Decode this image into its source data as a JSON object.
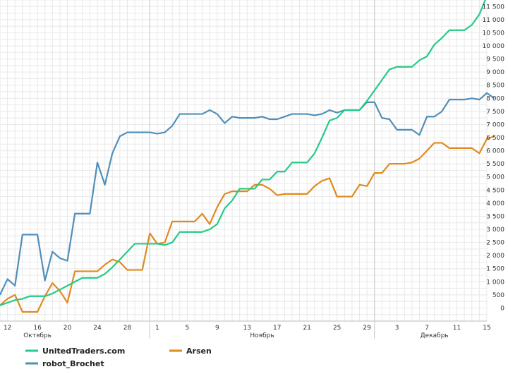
{
  "chart_data": {
    "type": "line",
    "legend_position": "bottom",
    "grid": true,
    "ylim": [
      -500,
      11750
    ],
    "xlim": [
      0,
      64
    ],
    "y_ticks": [
      0,
      500,
      1000,
      1500,
      2000,
      2500,
      3000,
      3500,
      4000,
      4500,
      5000,
      5500,
      6000,
      6500,
      7000,
      7500,
      8000,
      8500,
      9000,
      9500,
      10000,
      10500,
      11000,
      11500
    ],
    "y_tick_labels": [
      "0",
      "500",
      "1 000",
      "1 500",
      "2 000",
      "2 500",
      "3 000",
      "3 500",
      "4 000",
      "4 500",
      "5 000",
      "5 500",
      "6 000",
      "6 500",
      "7 000",
      "7 500",
      "8 000",
      "8 500",
      "9 000",
      "9 500",
      "10 000",
      "10 500",
      "11 000",
      "11 500"
    ],
    "x_ticks": [
      {
        "x": 1,
        "label": "12"
      },
      {
        "x": 5,
        "label": "16"
      },
      {
        "x": 9,
        "label": "20"
      },
      {
        "x": 13,
        "label": "24"
      },
      {
        "x": 17,
        "label": "28"
      },
      {
        "x": 21,
        "label": "1"
      },
      {
        "x": 25,
        "label": "5"
      },
      {
        "x": 29,
        "label": "9"
      },
      {
        "x": 33,
        "label": "13"
      },
      {
        "x": 37,
        "label": "17"
      },
      {
        "x": 41,
        "label": "21"
      },
      {
        "x": 45,
        "label": "25"
      },
      {
        "x": 49,
        "label": "29"
      },
      {
        "x": 53,
        "label": "3"
      },
      {
        "x": 57,
        "label": "7"
      },
      {
        "x": 61,
        "label": "11"
      },
      {
        "x": 65,
        "label": "15"
      }
    ],
    "month_labels": [
      {
        "x": 5,
        "label": "Октябрь"
      },
      {
        "x": 35,
        "label": "Ноябрь"
      },
      {
        "x": 58,
        "label": "Декабрь"
      }
    ],
    "month_dividers": [
      20,
      50
    ],
    "series": [
      {
        "name": "UnitedTraders.com",
        "color": "#22cc88",
        "values": [
          100,
          200,
          300,
          350,
          450,
          450,
          450,
          550,
          700,
          850,
          1000,
          1150,
          1150,
          1150,
          1300,
          1550,
          1850,
          2150,
          2450,
          2450,
          2450,
          2450,
          2400,
          2500,
          2900,
          2900,
          2900,
          2900,
          3000,
          3200,
          3800,
          4100,
          4550,
          4550,
          4550,
          4900,
          4900,
          5200,
          5200,
          5550,
          5550,
          5550,
          5900,
          6500,
          7150,
          7250,
          7550,
          7550,
          7550,
          7900,
          8300,
          8700,
          9100,
          9200,
          9200,
          9200,
          9450,
          9600,
          10050,
          10300,
          10600,
          10600,
          10600,
          10800,
          11200,
          11900
        ]
      },
      {
        "name": "Arsen",
        "color": "#e08a1e",
        "values": [
          100,
          350,
          500,
          -150,
          -150,
          -150,
          450,
          950,
          650,
          200,
          1400,
          1400,
          1400,
          1400,
          1650,
          1850,
          1750,
          1450,
          1450,
          1450,
          2850,
          2450,
          2500,
          3300,
          3300,
          3300,
          3300,
          3600,
          3200,
          3850,
          4350,
          4450,
          4450,
          4450,
          4700,
          4700,
          4550,
          4300,
          4350,
          4350,
          4350,
          4350,
          4650,
          4850,
          4950,
          4250,
          4250,
          4250,
          4700,
          4650,
          5150,
          5150,
          5500,
          5500,
          5500,
          5550,
          5700,
          6000,
          6300,
          6300,
          6100,
          6100,
          6100,
          6100,
          5900,
          6450,
          6550
        ]
      },
      {
        "name": "robot_Brochet",
        "color": "#4f8fba",
        "values": [
          500,
          1100,
          850,
          2800,
          2800,
          2800,
          1050,
          2150,
          1900,
          1800,
          3600,
          3600,
          3600,
          5550,
          4700,
          5900,
          6550,
          6700,
          6700,
          6700,
          6700,
          6650,
          6700,
          6950,
          7400,
          7400,
          7400,
          7400,
          7550,
          7400,
          7050,
          7300,
          7250,
          7250,
          7250,
          7300,
          7200,
          7200,
          7300,
          7400,
          7400,
          7400,
          7350,
          7400,
          7550,
          7450,
          7550,
          7550,
          7550,
          7850,
          7850,
          7250,
          7200,
          6800,
          6800,
          6800,
          6600,
          7300,
          7300,
          7500,
          7950,
          7950,
          7950,
          8000,
          7950,
          8200,
          8000
        ]
      }
    ]
  }
}
